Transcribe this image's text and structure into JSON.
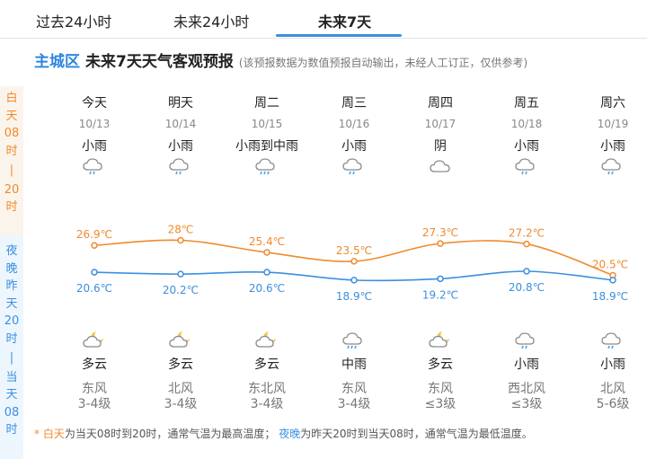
{
  "tabs": [
    {
      "label": "过去24小时"
    },
    {
      "label": "未来24小时"
    },
    {
      "label": "未来7天"
    }
  ],
  "header": {
    "district": "主城区",
    "title": "未来7天天气客观预报",
    "note": "(该预报数据为数值预报自动输出，未经人工订正，仅供参考)"
  },
  "side": {
    "day": [
      "白",
      "天",
      "08",
      "时",
      "|",
      "20",
      "时"
    ],
    "night": [
      "夜",
      "晚",
      "昨",
      "天",
      "20",
      "时",
      "|",
      "当",
      "天",
      "08",
      "时"
    ]
  },
  "days": [
    {
      "dow": "今天",
      "date": "10/13",
      "day_weather": "小雨",
      "day_icon": "light-rain-icon",
      "high": 26.9,
      "high_label": "26.9℃",
      "low": 20.6,
      "low_label": "20.6℃",
      "night_icon": "partly-cloudy-night-icon",
      "night_weather": "多云",
      "wind_dir": "东风",
      "wind_level": "3-4级"
    },
    {
      "dow": "明天",
      "date": "10/14",
      "day_weather": "小雨",
      "day_icon": "light-rain-icon",
      "high": 28,
      "high_label": "28℃",
      "low": 20.2,
      "low_label": "20.2℃",
      "night_icon": "partly-cloudy-night-icon",
      "night_weather": "多云",
      "wind_dir": "北风",
      "wind_level": "3-4级"
    },
    {
      "dow": "周二",
      "date": "10/15",
      "day_weather": "小雨到中雨",
      "day_icon": "moderate-rain-icon",
      "high": 25.4,
      "high_label": "25.4℃",
      "low": 20.6,
      "low_label": "20.6℃",
      "night_icon": "partly-cloudy-night-icon",
      "night_weather": "多云",
      "wind_dir": "东北风",
      "wind_level": "3-4级"
    },
    {
      "dow": "周三",
      "date": "10/16",
      "day_weather": "小雨",
      "day_icon": "light-rain-icon",
      "high": 23.5,
      "high_label": "23.5℃",
      "low": 18.9,
      "low_label": "18.9℃",
      "night_icon": "moderate-rain-icon",
      "night_weather": "中雨",
      "wind_dir": "东风",
      "wind_level": "3-4级"
    },
    {
      "dow": "周四",
      "date": "10/17",
      "day_weather": "阴",
      "day_icon": "overcast-icon",
      "high": 27.3,
      "high_label": "27.3℃",
      "low": 19.2,
      "low_label": "19.2℃",
      "night_icon": "partly-cloudy-night-icon",
      "night_weather": "多云",
      "wind_dir": "东风",
      "wind_level": "≤3级"
    },
    {
      "dow": "周五",
      "date": "10/18",
      "day_weather": "小雨",
      "day_icon": "light-rain-icon",
      "high": 27.2,
      "high_label": "27.2℃",
      "low": 20.8,
      "low_label": "20.8℃",
      "night_icon": "light-rain-icon",
      "night_weather": "小雨",
      "wind_dir": "西北风",
      "wind_level": "≤3级"
    },
    {
      "dow": "周六",
      "date": "10/19",
      "day_weather": "小雨",
      "day_icon": "light-rain-icon",
      "high": 20.5,
      "high_label": "20.5℃",
      "low": 18.9,
      "low_label": "18.9℃",
      "night_icon": "light-rain-icon",
      "night_weather": "小雨",
      "wind_dir": "北风",
      "wind_level": "5-6级"
    }
  ],
  "colors": {
    "high": "#f08a2d",
    "low": "#3b8fe0",
    "accent": "#2e86de"
  },
  "footnote": {
    "prefix": "* ",
    "day_term": "白天",
    "day_text": "为当天08时到20时，通常气温为最高温度；",
    "night_term": "夜晚",
    "night_text": "为昨天20时到当天08时，通常气温为最低温度。"
  }
}
